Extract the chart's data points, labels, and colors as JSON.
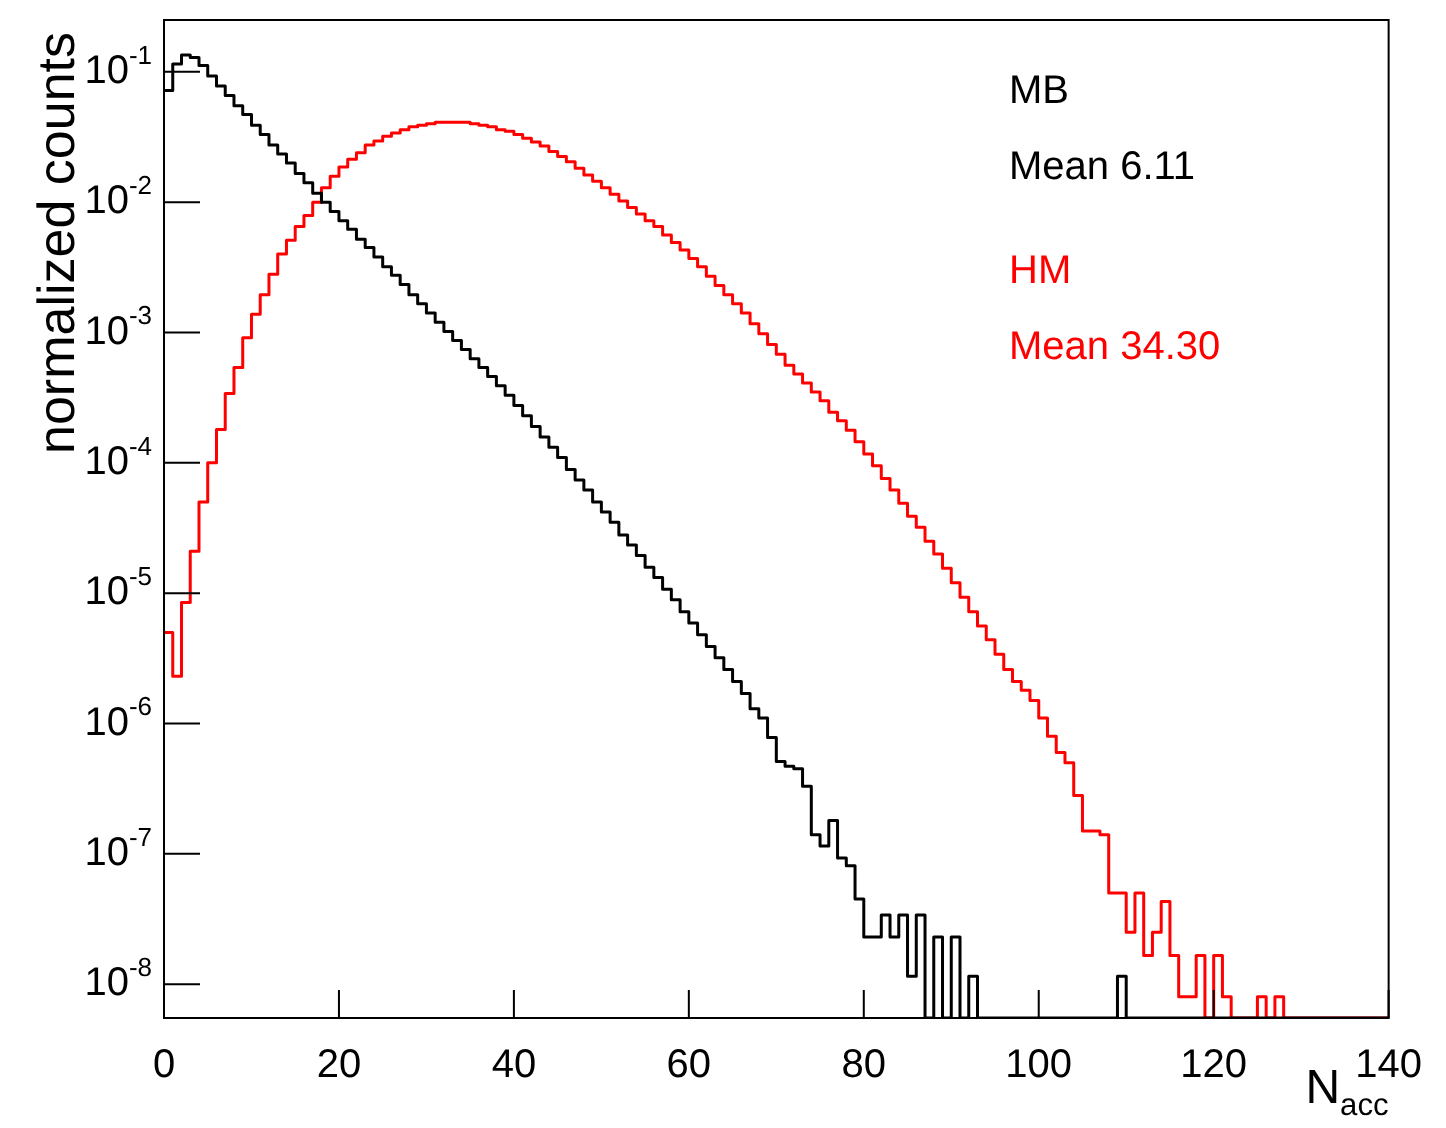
{
  "chart_data": {
    "type": "histogram",
    "xlabel": "N$_{acc}$",
    "ylabel": "normalized counts",
    "legend": "top right",
    "log": "y",
    "xlim": [
      0,
      140
    ],
    "xticks": [
      0,
      20,
      40,
      60,
      80,
      100,
      120,
      140
    ],
    "ylim": [
      5.5e-09,
      0.25
    ],
    "yticks": [
      {
        "value": 1e-08,
        "label": "10$^{-8}$"
      },
      {
        "value": 1e-07,
        "label": "10$^{-7}$"
      },
      {
        "value": 1e-06,
        "label": "10$^{-6}$"
      },
      {
        "value": 1e-05,
        "label": "10$^{-5}$"
      },
      {
        "value": 0.0001,
        "label": "10$^{-4}$"
      },
      {
        "value": 0.001,
        "label": "10$^{-3}$"
      },
      {
        "value": 0.01,
        "label": "10$^{-2}$"
      },
      {
        "value": 0.1,
        "label": "10$^{-1}$"
      }
    ],
    "annotations": [
      "Mean 6.11",
      "Mean 34.30"
    ],
    "bins": [
      0,
      1,
      2,
      3,
      4,
      5,
      6,
      7,
      8,
      9,
      10,
      11,
      12,
      13,
      14,
      15,
      16,
      17,
      18,
      19,
      20,
      21,
      22,
      23,
      24,
      25,
      26,
      27,
      28,
      29,
      30,
      31,
      32,
      33,
      34,
      35,
      36,
      37,
      38,
      39,
      40,
      41,
      42,
      43,
      44,
      45,
      46,
      47,
      48,
      49,
      50,
      51,
      52,
      53,
      54,
      55,
      56,
      57,
      58,
      59,
      60,
      61,
      62,
      63,
      64,
      65,
      66,
      67,
      68,
      69,
      70,
      71,
      72,
      73,
      74,
      75,
      76,
      77,
      78,
      79,
      80,
      81,
      82,
      83,
      84,
      85,
      86,
      87,
      88,
      89,
      90,
      91,
      92,
      93,
      94,
      95,
      96,
      97,
      98,
      99,
      100,
      101,
      102,
      103,
      104,
      105,
      106,
      107,
      108,
      109,
      110,
      111,
      112,
      113,
      114,
      115,
      116,
      117,
      118,
      119,
      120,
      121,
      122,
      123,
      124,
      125,
      126,
      127,
      128,
      129,
      130,
      131,
      132,
      133,
      134,
      135,
      136,
      137,
      138,
      139,
      140
    ],
    "series": [
      {
        "name": "MB",
        "color": "#000000",
        "values": [
          0.072,
          0.115,
          0.135,
          0.129,
          0.112,
          0.093,
          0.078,
          0.066,
          0.055,
          0.047,
          0.039,
          0.033,
          0.0275,
          0.0234,
          0.02,
          0.0166,
          0.0141,
          0.0117,
          0.01,
          0.0085,
          0.0072,
          0.0062,
          0.0052,
          0.0045,
          0.0038,
          0.0032,
          0.00275,
          0.00234,
          0.00195,
          0.00166,
          0.00141,
          0.0012,
          0.00102,
          0.00087,
          0.00074,
          0.00063,
          0.00054,
          0.00046,
          0.00039,
          0.00033,
          0.000275,
          0.00023,
          0.00019,
          0.000158,
          0.000132,
          0.00011,
          8.9e-05,
          7.4e-05,
          6.2e-05,
          5e-05,
          4.2e-05,
          3.5e-05,
          2.8e-05,
          2.34e-05,
          1.95e-05,
          1.58e-05,
          1.32e-05,
          1.07e-05,
          8.9e-06,
          7.2e-06,
          5.9e-06,
          4.8e-06,
          3.9e-06,
          3.2e-06,
          2.6e-06,
          2.1e-06,
          1.7e-06,
          1.3e-06,
          1.1e-06,
          7.8e-07,
          5.1e-07,
          4.7e-07,
          4.5e-07,
          3.3e-07,
          1.4e-07,
          1.15e-07,
          1.8e-07,
          9.3e-08,
          8.1e-08,
          4.5e-08,
          2.3e-08,
          2.3e-08,
          3.4e-08,
          2.3e-08,
          3.4e-08,
          1.15e-08,
          3.4e-08,
          null,
          2.3e-08,
          null,
          2.3e-08,
          null,
          1.15e-08,
          null,
          null,
          null,
          null,
          null,
          null,
          null,
          null,
          null,
          null,
          null,
          null,
          null,
          null,
          null,
          null,
          1.15e-08,
          null,
          null,
          null,
          null,
          null,
          null,
          null,
          null,
          null,
          null,
          null,
          null,
          null,
          null,
          null,
          null,
          null,
          null,
          null,
          null,
          null,
          null,
          null,
          null,
          null,
          null,
          null,
          null,
          null,
          null
        ]
      },
      {
        "name": "HM",
        "color": "#ff0000",
        "values": [
          5e-06,
          2.3e-06,
          8.5e-06,
          2.1e-05,
          5e-05,
          0.0001,
          0.00018,
          0.00034,
          0.00054,
          0.00091,
          0.00138,
          0.00195,
          0.0028,
          0.004,
          0.0051,
          0.0065,
          0.0079,
          0.01,
          0.0129,
          0.0158,
          0.0186,
          0.0214,
          0.024,
          0.0275,
          0.0295,
          0.032,
          0.034,
          0.036,
          0.038,
          0.039,
          0.04,
          0.041,
          0.041,
          0.041,
          0.041,
          0.04,
          0.039,
          0.038,
          0.036,
          0.035,
          0.033,
          0.031,
          0.029,
          0.027,
          0.0245,
          0.0224,
          0.0204,
          0.0182,
          0.0162,
          0.0145,
          0.0129,
          0.0115,
          0.0102,
          0.0091,
          0.0081,
          0.0072,
          0.0065,
          0.0056,
          0.0049,
          0.0043,
          0.0037,
          0.0032,
          0.0027,
          0.0023,
          0.00195,
          0.00166,
          0.00141,
          0.00117,
          0.00098,
          0.00081,
          0.00068,
          0.00056,
          0.00048,
          0.00041,
          0.00035,
          0.0003,
          0.000245,
          0.00021,
          0.000178,
          0.000145,
          0.000117,
          9.5e-05,
          7.6e-05,
          6.2e-05,
          4.9e-05,
          3.9e-05,
          3.2e-05,
          2.5e-05,
          2e-05,
          1.55e-05,
          1.2e-05,
          9.3e-06,
          7.2e-06,
          5.6e-06,
          4.4e-06,
          3.4e-06,
          2.6e-06,
          2.1e-06,
          1.8e-06,
          1.5e-06,
          1.1e-06,
          8e-07,
          6e-07,
          5e-07,
          2.8e-07,
          1.5e-07,
          1.5e-07,
          1.4e-07,
          5e-08,
          5e-08,
          2.5e-08,
          5e-08,
          1.66e-08,
          2.5e-08,
          4.3e-08,
          1.66e-08,
          8e-09,
          8e-09,
          1.66e-08,
          null,
          1.66e-08,
          8e-09,
          null,
          null,
          null,
          8e-09,
          null,
          8e-09,
          null,
          null,
          null,
          null,
          null,
          null,
          null,
          null,
          null,
          null,
          null,
          null
        ]
      }
    ]
  }
}
